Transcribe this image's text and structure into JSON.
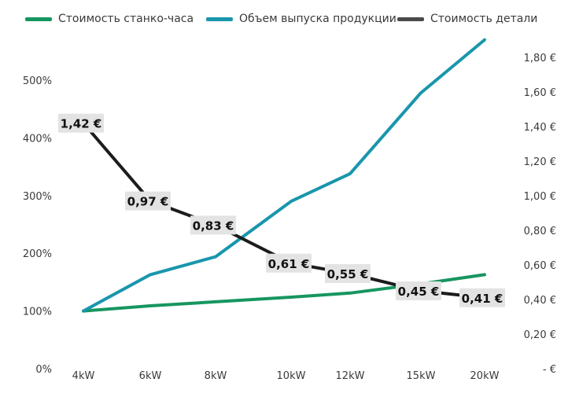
{
  "chart_data": {
    "type": "line",
    "legend_placement": "top",
    "grid": false,
    "categories": [
      "4kW",
      "6kW",
      "8kW",
      "10kW",
      "12kW",
      "15kW",
      "20kW"
    ],
    "y_left": {
      "ylim": [
        0,
        500
      ],
      "ticks": [
        0,
        100,
        200,
        300,
        400,
        500
      ],
      "tick_labels": [
        "0%",
        "100%",
        "200%",
        "300%",
        "400%",
        "500%"
      ]
    },
    "y_right": {
      "ylim": [
        0,
        1.9
      ],
      "ticks": [
        0,
        0.2,
        0.4,
        0.6,
        0.8,
        1.0,
        1.2,
        1.4,
        1.6,
        1.8
      ],
      "tick_labels": [
        "- €",
        "0,20 €",
        "0,40 €",
        "0,60 €",
        "0,80 €",
        "1,00 €",
        "1,20 €",
        "1,40 €",
        "1,60 €",
        "1,80 €"
      ]
    },
    "series": [
      {
        "name": "Стоимость станко-часа",
        "axis": "left",
        "color": "#16965f",
        "values": [
          100,
          109,
          116,
          124,
          131,
          147,
          163
        ]
      },
      {
        "name": "Объем  выпуска продукции",
        "axis": "left",
        "color": "#1996ac",
        "values": [
          100,
          163,
          194,
          290,
          338,
          478,
          570
        ]
      },
      {
        "name": "Стоимость детали",
        "axis": "right",
        "color": "#1c1c1c",
        "values": [
          1.42,
          0.97,
          0.83,
          0.61,
          0.55,
          0.45,
          0.41
        ],
        "data_labels": [
          "1,42 €",
          "0,97 €",
          "0,83 €",
          "0,61 €",
          "0,55 €",
          "0,45 €",
          "0,41 €"
        ]
      }
    ],
    "legend_swatch_color_third": "#4a4a4a"
  }
}
